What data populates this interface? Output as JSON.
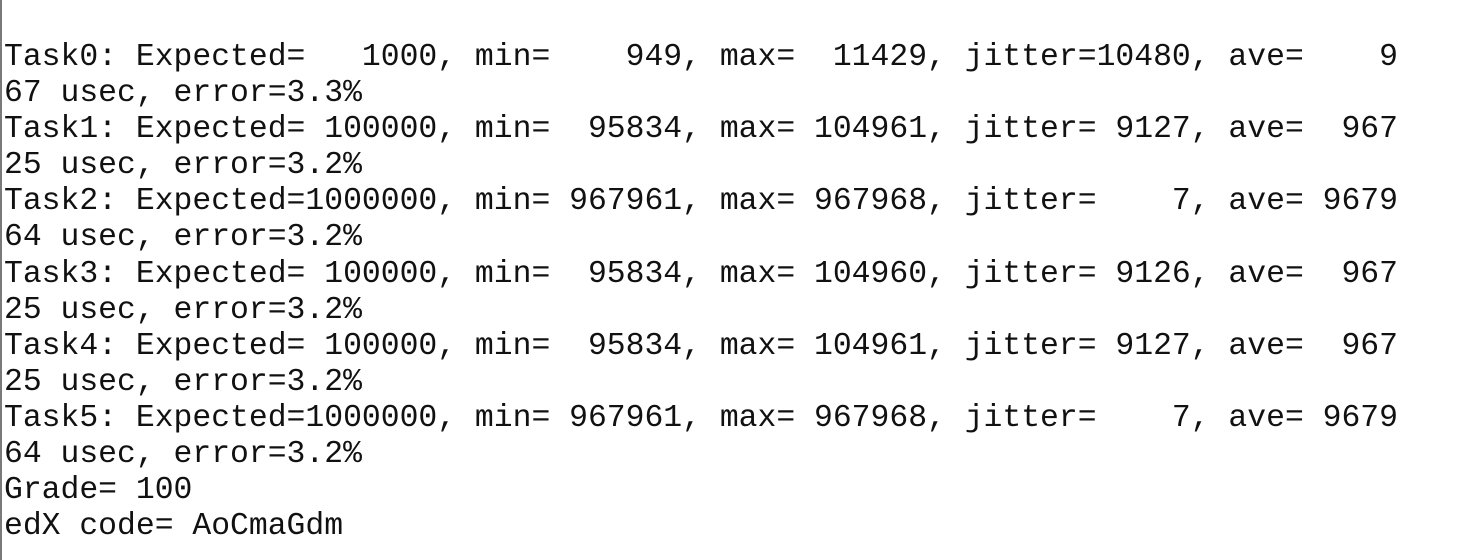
{
  "terminal": {
    "lines": [
      "Task0: Expected=   1000, min=    949, max=  11429, jitter=10480, ave=    9",
      "67 usec, error=3.3%",
      "Task1: Expected= 100000, min=  95834, max= 104961, jitter= 9127, ave=  967",
      "25 usec, error=3.2%",
      "Task2: Expected=1000000, min= 967961, max= 967968, jitter=    7, ave= 9679",
      "64 usec, error=3.2%",
      "Task3: Expected= 100000, min=  95834, max= 104960, jitter= 9126, ave=  967",
      "25 usec, error=3.2%",
      "Task4: Expected= 100000, min=  95834, max= 104961, jitter= 9127, ave=  967",
      "25 usec, error=3.2%",
      "Task5: Expected=1000000, min= 967961, max= 967968, jitter=    7, ave= 9679",
      "64 usec, error=3.2%",
      "Grade= 100",
      "edX code= AoCmaGdm"
    ]
  }
}
